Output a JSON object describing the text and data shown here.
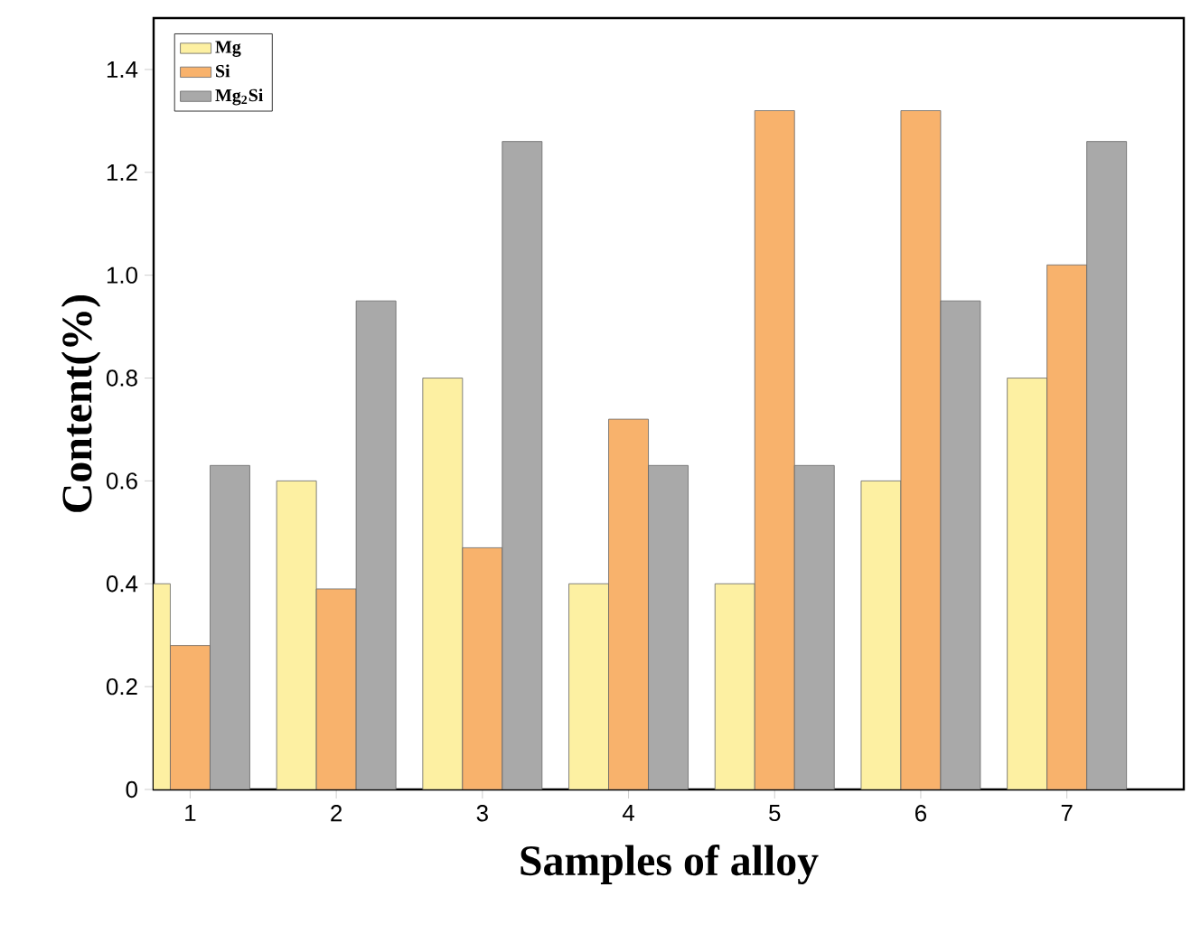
{
  "chart_data": {
    "type": "bar",
    "xlabel": "Samples of alloy",
    "ylabel": "Content(%)",
    "categories": [
      "1",
      "2",
      "3",
      "4",
      "5",
      "6",
      "7"
    ],
    "series": [
      {
        "name": "Mg",
        "color": "#fdf0a2",
        "values": [
          0.4,
          0.6,
          0.8,
          0.4,
          0.4,
          0.6,
          0.8
        ]
      },
      {
        "name": "Si",
        "color": "#f8b26c",
        "values": [
          0.28,
          0.39,
          0.47,
          0.72,
          1.32,
          1.32,
          1.02
        ]
      },
      {
        "name": "Mg$_{2}$Si",
        "color": "#a9a9a9",
        "values": [
          0.63,
          0.95,
          1.26,
          0.63,
          0.63,
          0.95,
          1.26
        ]
      }
    ],
    "ylim": [
      0,
      1.5
    ],
    "yticks": [
      0,
      0.2,
      0.4,
      0.6,
      0.8,
      {
        "value": 1.0,
        "label": "1.0"
      },
      1.2,
      1.4
    ],
    "grid": false,
    "legend": "top left"
  }
}
